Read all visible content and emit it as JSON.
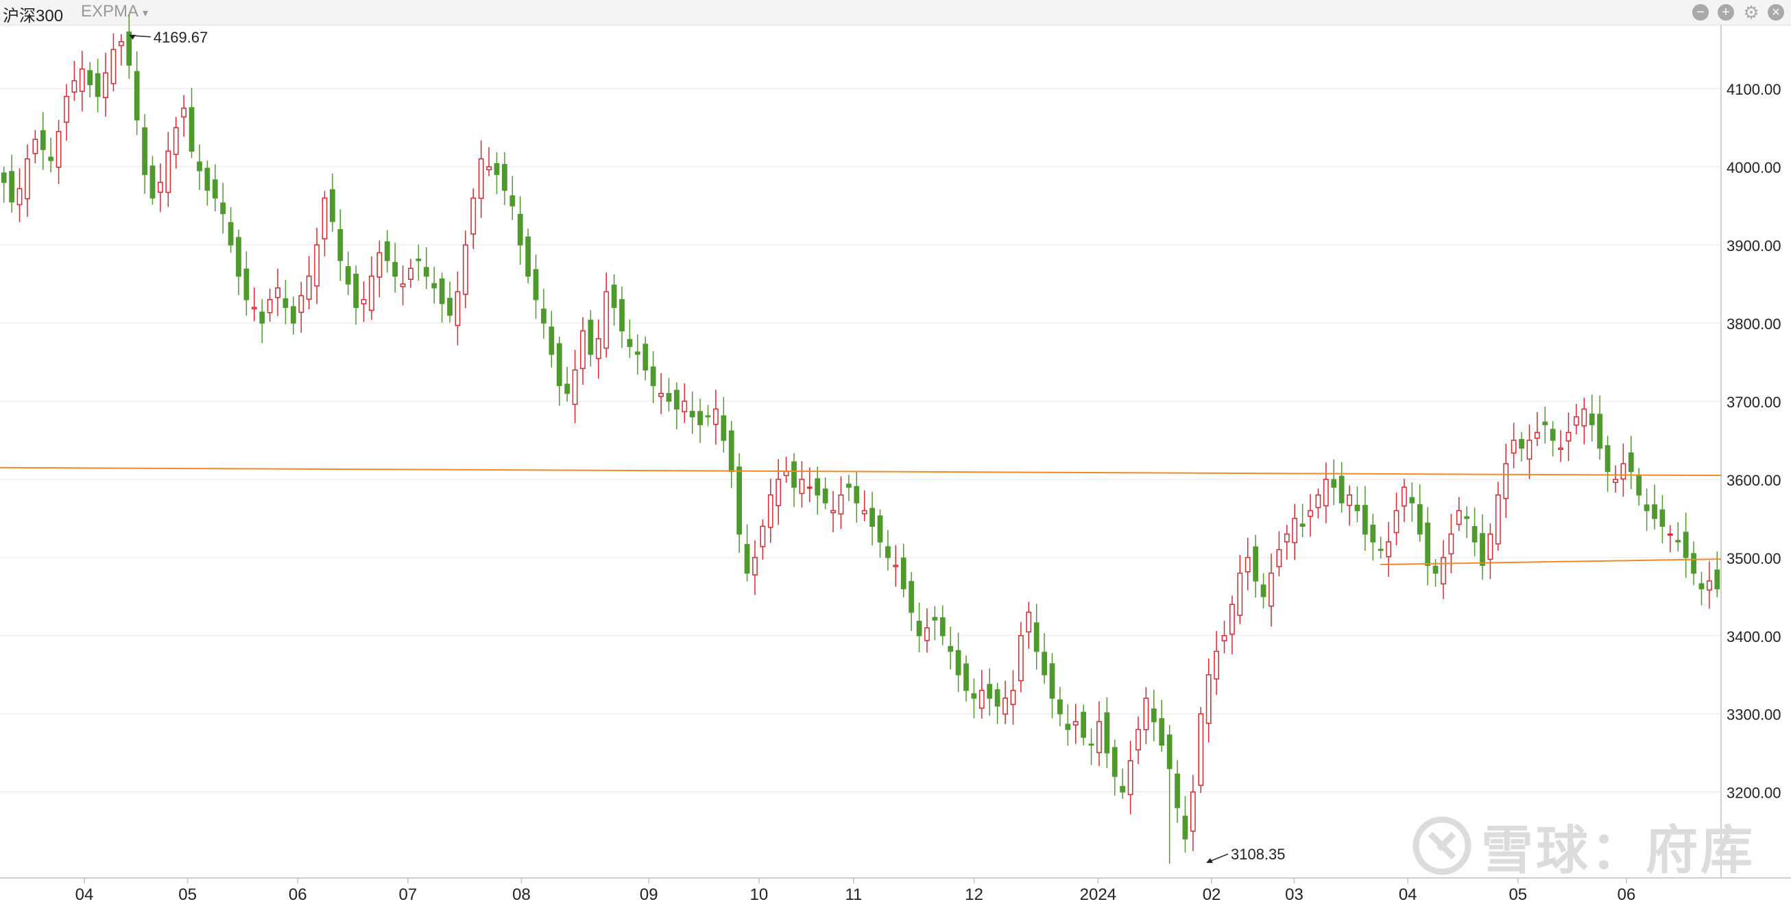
{
  "toolbar": {
    "title": "沪深300",
    "indicator": "EXPMA",
    "buttons": [
      {
        "name": "zoom-out",
        "glyph": "−"
      },
      {
        "name": "zoom-in",
        "glyph": "+"
      },
      {
        "name": "settings",
        "glyph": "⚙"
      },
      {
        "name": "close",
        "glyph": "×"
      }
    ]
  },
  "watermark": {
    "text": "雪球：府库"
  },
  "colors": {
    "up": "#d9272e",
    "down": "#4f9a2c",
    "trend": "#f08a24",
    "grid": "#e6e6e6",
    "axis": "#cfcfcf"
  },
  "chart_data": {
    "type": "candlestick",
    "y_range": [
      3090,
      4180
    ],
    "y_ticks": [
      "3200.00",
      "3300.00",
      "3400.00",
      "3500.00",
      "3600.00",
      "3700.00",
      "3800.00",
      "3900.00",
      "4000.00",
      "4100.00"
    ],
    "x_labels": [
      {
        "label": "04",
        "pos": 0.049
      },
      {
        "label": "05",
        "pos": 0.109
      },
      {
        "label": "06",
        "pos": 0.173
      },
      {
        "label": "07",
        "pos": 0.237
      },
      {
        "label": "08",
        "pos": 0.303
      },
      {
        "label": "09",
        "pos": 0.377
      },
      {
        "label": "10",
        "pos": 0.441
      },
      {
        "label": "11",
        "pos": 0.496
      },
      {
        "label": "12",
        "pos": 0.566
      },
      {
        "label": "2024",
        "pos": 0.638
      },
      {
        "label": "02",
        "pos": 0.704
      },
      {
        "label": "03",
        "pos": 0.752
      },
      {
        "label": "04",
        "pos": 0.818
      },
      {
        "label": "05",
        "pos": 0.882
      },
      {
        "label": "06",
        "pos": 0.945
      }
    ],
    "annotations": [
      {
        "label": "4169.67",
        "value": 4169.67,
        "pos": 0.074
      },
      {
        "label": "3108.35",
        "value": 3108.35,
        "pos": 0.7
      }
    ],
    "trendlines": [
      {
        "from": {
          "pos": 0.0,
          "value": 3615
        },
        "to": {
          "pos": 1.0,
          "value": 3605
        }
      },
      {
        "from": {
          "pos": 0.802,
          "value": 3491
        },
        "to": {
          "pos": 1.0,
          "value": 3498
        }
      }
    ],
    "closes": [
      3980,
      3955,
      3972,
      4010,
      4035,
      4022,
      4008,
      4045,
      4090,
      4110,
      4125,
      4105,
      4090,
      4120,
      4150,
      4160,
      4130,
      4060,
      3990,
      3960,
      3980,
      4020,
      4050,
      4075,
      4020,
      3995,
      3970,
      3960,
      3940,
      3900,
      3860,
      3830,
      3820,
      3800,
      3830,
      3845,
      3820,
      3800,
      3835,
      3860,
      3900,
      3960,
      3930,
      3880,
      3850,
      3820,
      3830,
      3860,
      3890,
      3880,
      3860,
      3850,
      3870,
      3880,
      3860,
      3845,
      3825,
      3810,
      3840,
      3900,
      3960,
      4010,
      4000,
      3990,
      3970,
      3950,
      3900,
      3860,
      3830,
      3800,
      3760,
      3720,
      3710,
      3740,
      3790,
      3760,
      3780,
      3840,
      3820,
      3790,
      3770,
      3760,
      3740,
      3720,
      3710,
      3700,
      3690,
      3700,
      3680,
      3670,
      3680,
      3690,
      3650,
      3610,
      3530,
      3480,
      3500,
      3540,
      3580,
      3600,
      3610,
      3590,
      3600,
      3590,
      3580,
      3570,
      3560,
      3580,
      3590,
      3570,
      3560,
      3540,
      3520,
      3500,
      3490,
      3460,
      3430,
      3400,
      3410,
      3420,
      3400,
      3380,
      3350,
      3330,
      3320,
      3330,
      3320,
      3310,
      3320,
      3330,
      3400,
      3430,
      3380,
      3350,
      3320,
      3300,
      3280,
      3290,
      3270,
      3260,
      3290,
      3250,
      3220,
      3200,
      3240,
      3280,
      3320,
      3290,
      3260,
      3230,
      3180,
      3140,
      3200,
      3300,
      3350,
      3380,
      3400,
      3440,
      3480,
      3500,
      3470,
      3450,
      3480,
      3510,
      3530,
      3550,
      3540,
      3560,
      3580,
      3600,
      3590,
      3570,
      3580,
      3560,
      3530,
      3520,
      3510,
      3520,
      3560,
      3590,
      3570,
      3530,
      3490,
      3480,
      3500,
      3530,
      3560,
      3550,
      3520,
      3490,
      3530,
      3580,
      3620,
      3650,
      3640,
      3650,
      3660,
      3670,
      3650,
      3640,
      3660,
      3680,
      3690,
      3670,
      3640,
      3610,
      3600,
      3620,
      3610,
      3580,
      3560,
      3550,
      3540,
      3530,
      3520,
      3500,
      3480,
      3460,
      3470,
      3460
    ],
    "extremes": [
      {
        "index": 15,
        "high": 4169.67
      },
      {
        "index": 149,
        "low": 3108.35
      }
    ]
  }
}
